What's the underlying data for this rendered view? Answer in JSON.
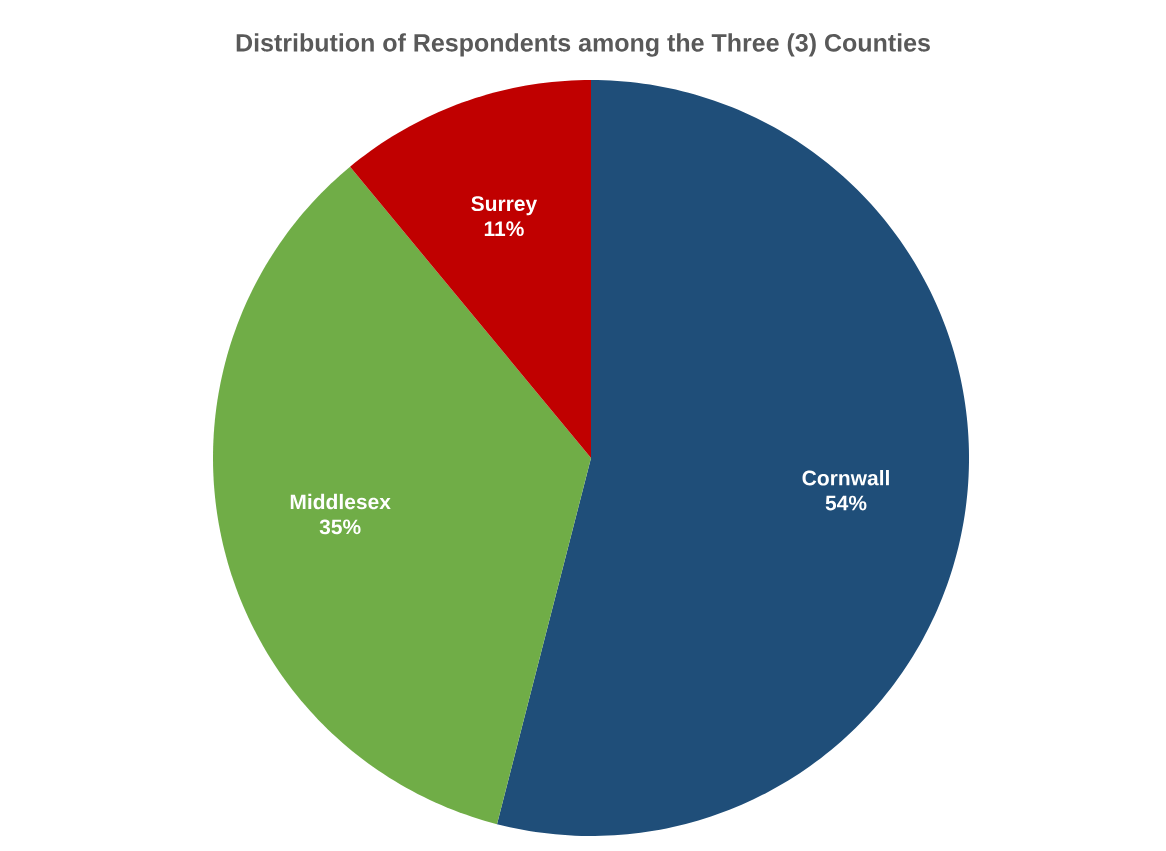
{
  "chart_data": {
    "type": "pie",
    "title": "Distribution of Respondents among the Three (3) Counties",
    "categories": [
      "Cornwall",
      "Middlesex",
      "Surrey"
    ],
    "values": [
      54,
      35,
      11
    ],
    "value_labels": [
      "54%",
      "35%",
      "11%"
    ],
    "colors": [
      "#1f4e79",
      "#70ad47",
      "#c00000"
    ]
  }
}
